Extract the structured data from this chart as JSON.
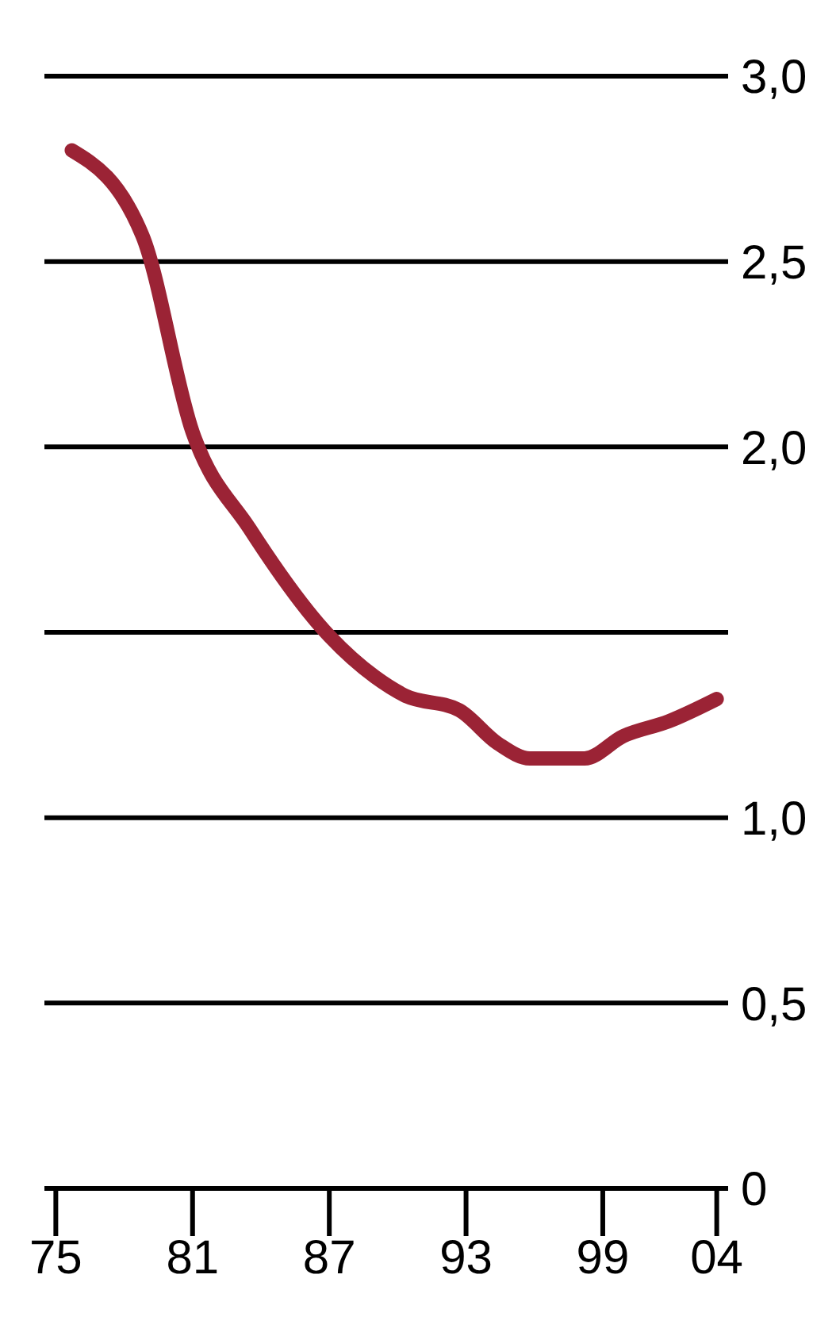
{
  "chart_data": {
    "type": "line",
    "x": [
      1975.7,
      1978.8,
      1981,
      1983.5,
      1987,
      1989,
      1990.3,
      1992.7,
      1994.4,
      1995.8,
      1998.2,
      1999.9,
      2001.9,
      2004
    ],
    "series": [
      {
        "color": "#9b2335",
        "values": [
          2.8,
          2.57,
          2.04,
          1.78,
          1.49,
          1.38,
          1.33,
          1.29,
          1.2,
          1.16,
          1.16,
          1.22,
          1.26,
          1.32
        ]
      }
    ],
    "xlim": [
      1974.5,
      2004.5
    ],
    "xticks": [
      {
        "value": 1975,
        "label": "75"
      },
      {
        "value": 1981,
        "label": "81"
      },
      {
        "value": 1987,
        "label": "87"
      },
      {
        "value": 1993,
        "label": "93"
      },
      {
        "value": 1999,
        "label": "99"
      },
      {
        "value": 2004,
        "label": "04"
      }
    ],
    "ylim": [
      0,
      3
    ],
    "yticks": [
      {
        "value": 0,
        "label": "0"
      },
      {
        "value": 0.5,
        "label": "0,5"
      },
      {
        "value": 1,
        "label": "1,0"
      },
      {
        "value": 1.5,
        "label": null
      },
      {
        "value": 2,
        "label": "2,0"
      },
      {
        "value": 2.5,
        "label": "2,5"
      },
      {
        "value": 3,
        "label": "3,0"
      }
    ],
    "grid": "y",
    "marker": "none",
    "line_style": "solid"
  }
}
